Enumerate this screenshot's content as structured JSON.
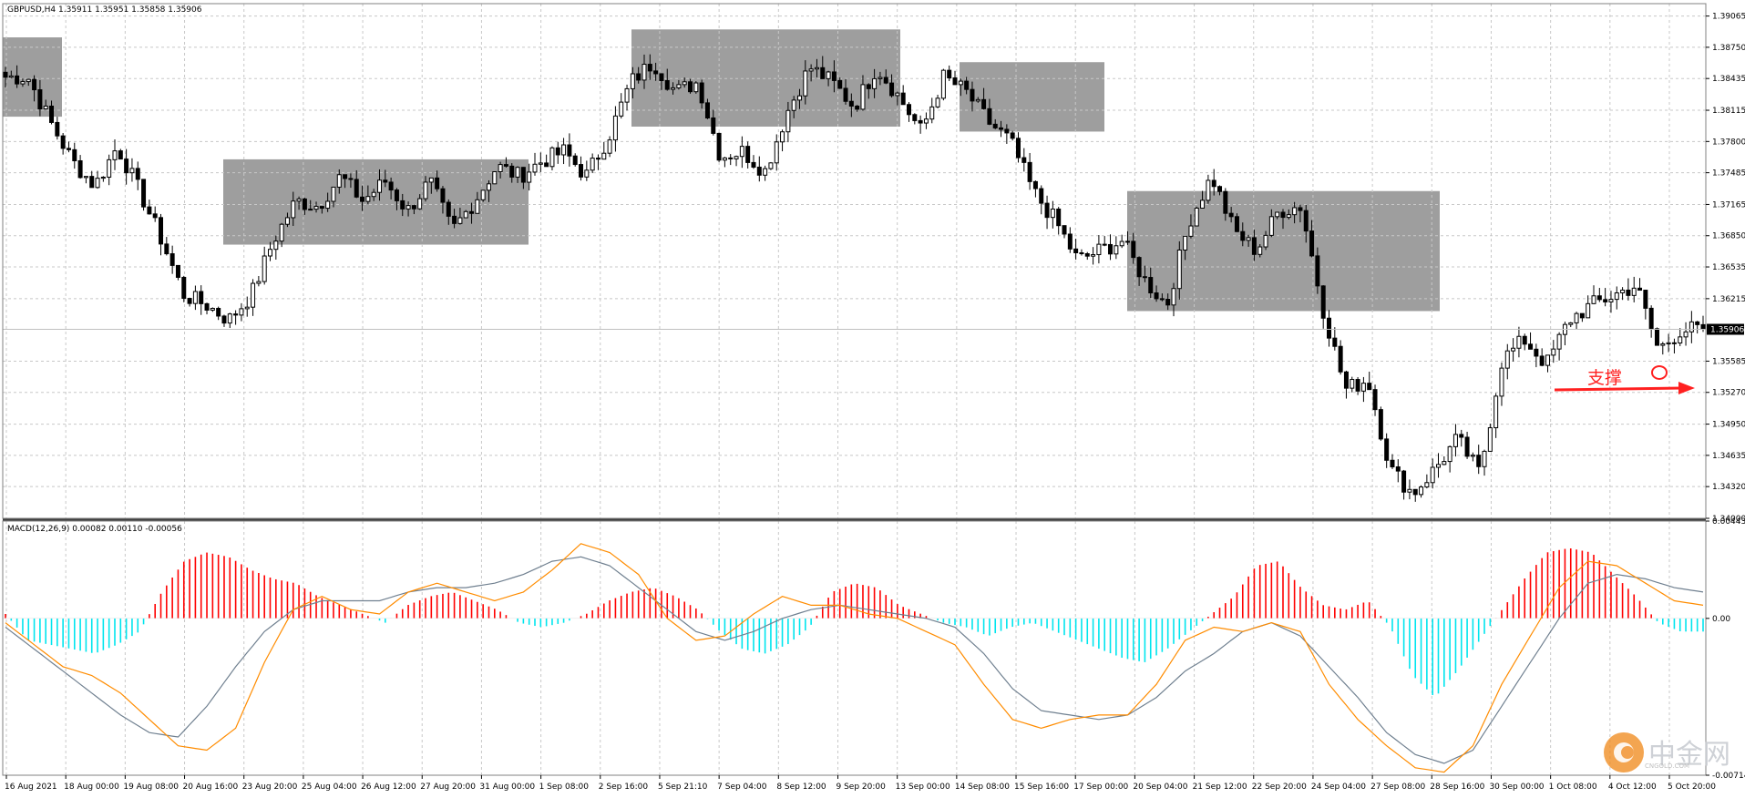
{
  "chart_header": {
    "symbol_line": "GBPUSD,H4  1.35911 1.35951 1.35858 1.35906",
    "indicator_line": "MACD(12,26,9) 0.00082 0.00110 -0.00056"
  },
  "annotation": {
    "text": "支撑"
  },
  "watermark": {
    "brand": "中金网",
    "url": "CNGOLD.COM"
  },
  "colors": {
    "bull_body": "#ffffff",
    "bear_body": "#000000",
    "wick": "#000000",
    "zone": "#9e9e9e",
    "macd_pos": "#ff0000",
    "macd_neg": "#00e5ee",
    "macd_line": "#ff8c00",
    "signal_line": "#708090",
    "arrow": "#ff2020",
    "grid": "#c8c8c8",
    "price_tag_bg": "#000000"
  },
  "chart_data": [
    {
      "type": "candlestick",
      "title": "GBPUSD,H4",
      "ohlc_header": [
        1.35911,
        1.35951,
        1.35858,
        1.35906
      ],
      "current_price": "1.35906",
      "ylim": [
        1.34,
        1.3919
      ],
      "yticks": [
        "1.39065",
        "1.38750",
        "1.38435",
        "1.38115",
        "1.37800",
        "1.37485",
        "1.37165",
        "1.36850",
        "1.36535",
        "1.36215",
        "1.35585",
        "1.35270",
        "1.34950",
        "1.34635",
        "1.34320",
        "1.34000"
      ],
      "xticks": [
        "16 Aug 2021",
        "18 Aug 00:00",
        "19 Aug 08:00",
        "20 Aug 16:00",
        "23 Aug 20:00",
        "25 Aug 04:00",
        "26 Aug 12:00",
        "27 Aug 20:00",
        "31 Aug 00:00",
        "1 Sep 08:00",
        "2 Sep 16:00",
        "5 Sep 21:10",
        "7 Sep 04:00",
        "8 Sep 12:00",
        "9 Sep 20:00",
        "13 Sep 00:00",
        "14 Sep 08:00",
        "15 Sep 16:00",
        "17 Sep 00:00",
        "20 Sep 04:00",
        "21 Sep 12:00",
        "22 Sep 20:00",
        "24 Sep 04:00",
        "27 Sep 08:00",
        "28 Sep 16:00",
        "30 Sep 00:00",
        "1 Oct 08:00",
        "4 Oct 12:00",
        "5 Oct 20:00"
      ],
      "anchors": [
        1.3845,
        1.3845,
        1.38,
        1.376,
        1.3735,
        1.3775,
        1.373,
        1.368,
        1.3625,
        1.3615,
        1.36,
        1.3625,
        1.368,
        1.372,
        1.3715,
        1.3745,
        1.372,
        1.374,
        1.371,
        1.374,
        1.369,
        1.372,
        1.3755,
        1.3745,
        1.376,
        1.377,
        1.3745,
        1.3785,
        1.384,
        1.386,
        1.383,
        1.384,
        1.3765,
        1.377,
        1.375,
        1.381,
        1.3855,
        1.384,
        1.3815,
        1.3855,
        1.3825,
        1.379,
        1.3845,
        1.383,
        1.38,
        1.378,
        1.373,
        1.37,
        1.366,
        1.367,
        1.368,
        1.364,
        1.3615,
        1.37,
        1.3745,
        1.369,
        1.367,
        1.371,
        1.3715,
        1.361,
        1.353,
        1.354,
        1.345,
        1.3425,
        1.345,
        1.348,
        1.3445,
        1.356,
        1.358,
        1.3555,
        1.36,
        1.3615,
        1.3625,
        1.3635,
        1.357,
        1.359,
        1.3591
      ],
      "zones": [
        {
          "from": "16 Aug 2021",
          "to": "18 Aug 00:00",
          "top": 1.3885,
          "bottom": 1.3805
        },
        {
          "from": "23 Aug 20:00",
          "to": "31 Aug 00:00",
          "top": 1.3762,
          "bottom": 1.3676
        },
        {
          "from": "5 Sep 21:10",
          "to": "13 Sep 00:00",
          "top": 1.3893,
          "bottom": 1.3795
        },
        {
          "from": "14 Sep 08:00",
          "to": "15 Sep 16:00",
          "top": 1.386,
          "bottom": 1.379
        },
        {
          "from": "20 Sep 04:00",
          "to": "27 Sep 08:00",
          "top": 1.373,
          "bottom": 1.3609
        }
      ],
      "support_level": 1.35295,
      "support_marker_price": 1.3547
    },
    {
      "type": "bar",
      "title": "MACD(12,26,9)",
      "values_header": [
        0.00082,
        0.0011,
        -0.00056
      ],
      "ylim": [
        -0.00714,
        0.00443
      ],
      "yticks": [
        "0.00443",
        "0.00",
        "-0.00714"
      ],
      "histogram_anchors": [
        0.0002,
        -0.001,
        -0.0012,
        -0.0014,
        -0.0016,
        -0.0012,
        -0.0006,
        0.0012,
        0.0026,
        0.003,
        0.0028,
        0.0022,
        0.0018,
        0.0016,
        0.001,
        0.0006,
        0.0002,
        -0.0002,
        0.0006,
        0.001,
        0.0012,
        0.0008,
        0.0004,
        -0.0002,
        -0.0004,
        -0.0002,
        0.0002,
        0.0008,
        0.0012,
        0.0014,
        0.001,
        0.0004,
        -0.0006,
        -0.0014,
        -0.0016,
        -0.0012,
        -0.0004,
        0.0012,
        0.0016,
        0.0014,
        0.0006,
        0.0002,
        -0.0002,
        -0.0004,
        -0.0008,
        -0.0004,
        -0.0002,
        -0.0006,
        -0.001,
        -0.0014,
        -0.0018,
        -0.002,
        -0.0014,
        -0.0006,
        0.0002,
        0.001,
        0.0024,
        0.0026,
        0.0014,
        0.0006,
        0.0004,
        0.0008,
        -0.0004,
        -0.0026,
        -0.0036,
        -0.0024,
        -0.001,
        0.0004,
        0.0018,
        0.003,
        0.0032,
        0.003,
        0.002,
        0.001,
        -0.0002,
        -0.0006,
        -0.0006
      ],
      "macd_anchors": [
        -0.0002,
        -0.0012,
        -0.0022,
        -0.0026,
        -0.0034,
        -0.0046,
        -0.0058,
        -0.006,
        -0.005,
        -0.002,
        0.0004,
        0.001,
        0.0004,
        0.0002,
        0.0012,
        0.0016,
        0.0012,
        0.0008,
        0.0012,
        0.0022,
        0.0034,
        0.003,
        0.002,
        0.0,
        -0.001,
        -0.0008,
        0.0002,
        0.001,
        0.0006,
        0.0006,
        0.0002,
        0.0,
        -0.0006,
        -0.0012,
        -0.003,
        -0.0046,
        -0.005,
        -0.0046,
        -0.0044,
        -0.0044,
        -0.003,
        -0.001,
        -0.0004,
        -0.0006,
        -0.0002,
        -0.0006,
        -0.003,
        -0.0046,
        -0.0058,
        -0.0068,
        -0.007,
        -0.0058,
        -0.003,
        -0.0008,
        0.0014,
        0.0026,
        0.0024,
        0.0016,
        0.0008,
        0.0006
      ],
      "signal_anchors": [
        -0.0004,
        -0.0014,
        -0.0024,
        -0.0034,
        -0.0044,
        -0.0052,
        -0.0054,
        -0.004,
        -0.0022,
        -0.0006,
        0.0004,
        0.0008,
        0.0008,
        0.0008,
        0.0012,
        0.0014,
        0.0014,
        0.0016,
        0.002,
        0.0026,
        0.0028,
        0.0024,
        0.0014,
        0.0004,
        -0.0006,
        -0.001,
        -0.0006,
        0.0,
        0.0004,
        0.0006,
        0.0004,
        0.0002,
        0.0,
        -0.0004,
        -0.0016,
        -0.0032,
        -0.0042,
        -0.0044,
        -0.0046,
        -0.0044,
        -0.0036,
        -0.0024,
        -0.0016,
        -0.0006,
        -0.0002,
        -0.0008,
        -0.0022,
        -0.0036,
        -0.0052,
        -0.0062,
        -0.0066,
        -0.006,
        -0.004,
        -0.002,
        0.0,
        0.0016,
        0.002,
        0.0018,
        0.0014,
        0.0012
      ]
    }
  ]
}
